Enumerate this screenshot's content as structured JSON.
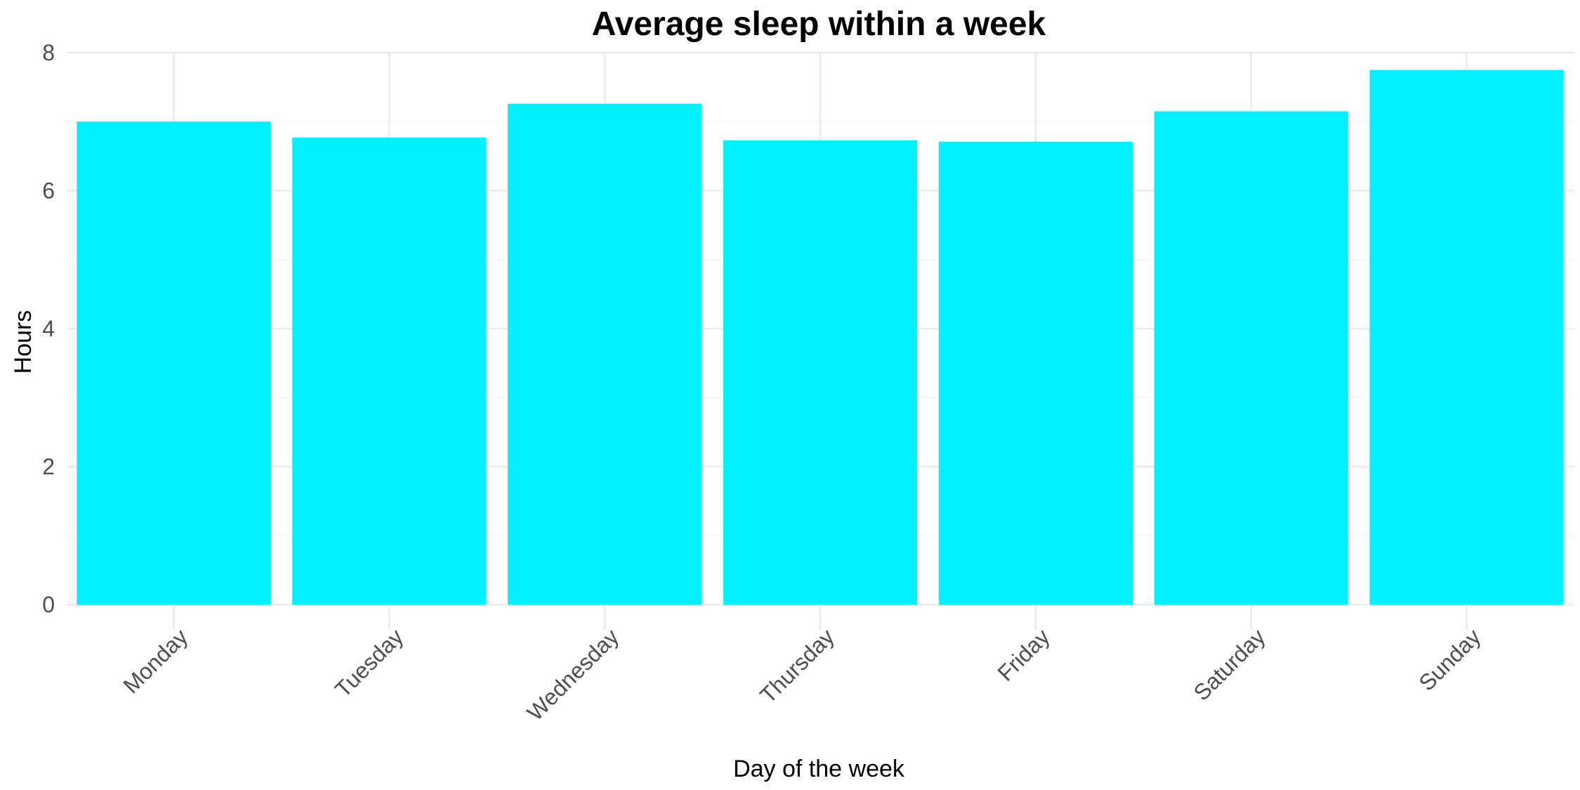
{
  "chart_data": {
    "type": "bar",
    "title": "Average sleep within a week",
    "xlabel": "Day of the week",
    "ylabel": "Hours",
    "categories": [
      "Monday",
      "Tuesday",
      "Wednesday",
      "Thursday",
      "Friday",
      "Saturday",
      "Sunday"
    ],
    "values": [
      7.0,
      6.77,
      7.26,
      6.73,
      6.71,
      7.15,
      7.75
    ],
    "ylim": [
      0,
      8
    ],
    "yticks": [
      "0",
      "2",
      "4",
      "6",
      "8"
    ],
    "bar_color": "#00F2FF",
    "grid": true,
    "legend": "none"
  }
}
